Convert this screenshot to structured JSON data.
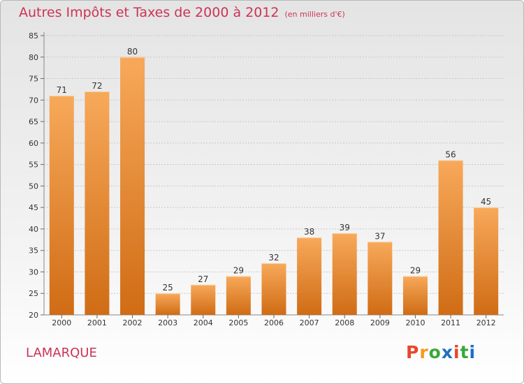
{
  "title": "Autres Impôts et Taxes de 2000 à 2012",
  "subtitle": "(en milliers d'€)",
  "commune": "LAMARQUE",
  "logo": {
    "text": "Proxiti",
    "colors": [
      "#e8462b",
      "#f59b1d",
      "#3aa83a",
      "#1f6fc4",
      "#e8462b",
      "#3aa83a",
      "#1f6fc4"
    ]
  },
  "colors": {
    "bar_top": "#f7a95a",
    "bar_bottom": "#d06c15",
    "title": "#cc3355"
  },
  "chart_data": {
    "type": "bar",
    "title": "Autres Impôts et Taxes de 2000 à 2012",
    "subtitle": "(en milliers d'€)",
    "categories": [
      "2000",
      "2001",
      "2002",
      "2003",
      "2004",
      "2005",
      "2006",
      "2007",
      "2008",
      "2009",
      "2010",
      "2011",
      "2012"
    ],
    "values": [
      71,
      72,
      80,
      25,
      27,
      29,
      32,
      38,
      39,
      37,
      29,
      56,
      45
    ],
    "data_labels": [
      "71",
      "72",
      "80",
      "25",
      "27",
      "29",
      "32",
      "38",
      "39",
      "37",
      "29",
      "56",
      "45"
    ],
    "yticks": [
      "20",
      "25",
      "30",
      "35",
      "40",
      "45",
      "50",
      "55",
      "60",
      "65",
      "70",
      "75",
      "80",
      "85"
    ],
    "ylim": [
      20,
      85
    ],
    "grid": true,
    "legend": "none"
  }
}
